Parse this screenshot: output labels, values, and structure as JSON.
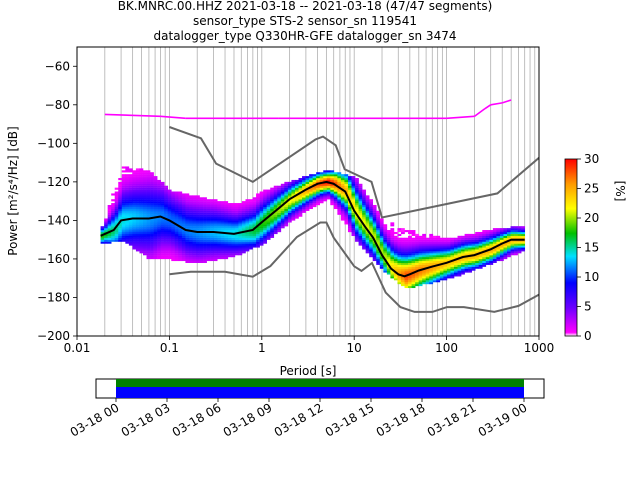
{
  "title_lines": [
    "BK.MNRC.00.HHZ   2021-03-18 -- 2021-03-18  (47/47 segments)",
    "sensor_type STS-2 sensor_sn 119541",
    "datalogger_type Q330HR-GFE datalogger_sn 3474"
  ],
  "chart_data": [
    {
      "type": "heatmap",
      "subtype": "probabilistic power spectral density",
      "xlabel": "Period [s]",
      "ylabel": "Power [m²/s⁴/Hz] [dB]",
      "xscale": "log",
      "xlim": [
        0.01,
        1000
      ],
      "ylim": [
        -200,
        -50
      ],
      "x_ticks": [
        0.01,
        0.1,
        1,
        10,
        100,
        1000
      ],
      "x_tick_labels": [
        "0.01",
        "0.1",
        "1",
        "10",
        "100",
        "1000"
      ],
      "y_ticks": [
        -200,
        -180,
        -160,
        -140,
        -120,
        -100,
        -80,
        -60
      ],
      "y_tick_labels": [
        "−200",
        "−180",
        "−160",
        "−140",
        "−120",
        "−100",
        "−80",
        "−60"
      ],
      "grid": "x major and minor",
      "colorbar": {
        "label": "[%]",
        "range": [
          0,
          30
        ],
        "ticks": [
          0,
          5,
          10,
          15,
          20,
          25,
          30
        ],
        "tick_labels": [
          "0",
          "5",
          "10",
          "15",
          "20",
          "25",
          "30"
        ],
        "colormap": "pqlx"
      },
      "mode_curve": {
        "color": "#000000",
        "x": [
          0.018,
          0.025,
          0.03,
          0.04,
          0.06,
          0.08,
          0.1,
          0.15,
          0.2,
          0.3,
          0.5,
          0.8,
          1,
          1.5,
          2,
          3,
          4,
          5,
          6,
          8,
          10,
          13,
          16,
          20,
          25,
          30,
          35,
          40,
          50,
          70,
          100,
          150,
          200,
          300,
          400,
          500,
          700
        ],
        "y": [
          -148,
          -145,
          -140,
          -139,
          -139,
          -138,
          -140,
          -145,
          -146,
          -146,
          -147,
          -145,
          -141,
          -134,
          -129,
          -124,
          -121,
          -120,
          -121,
          -125,
          -135,
          -143,
          -149,
          -158,
          -165,
          -168,
          -169,
          -168,
          -166,
          -164,
          -162,
          -159,
          -158,
          -155,
          -152,
          -150,
          -150
        ]
      },
      "noise_models": [
        {
          "name": "NHNM",
          "color": "#666666",
          "x": [
            0.1,
            0.22,
            0.32,
            0.8,
            3.8,
            4.6,
            6.3,
            7.9,
            15.4,
            20,
            354.8,
            1000
          ],
          "y": [
            -91.5,
            -97.4,
            -110.5,
            -120,
            -98,
            -96.5,
            -101,
            -113.5,
            -120,
            -138.5,
            -126,
            -107.5
          ]
        },
        {
          "name": "NLNM",
          "color": "#666666",
          "x": [
            0.1,
            0.17,
            0.4,
            0.8,
            1.24,
            2.4,
            4.3,
            5,
            6,
            10,
            12,
            15.6,
            21.9,
            31.6,
            45,
            70,
            101,
            154,
            328,
            600,
            1000
          ],
          "y": [
            -168,
            -166.7,
            -166.7,
            -169.2,
            -163.7,
            -148.6,
            -141.1,
            -141.1,
            -149,
            -163.8,
            -166.2,
            -162.1,
            -177.5,
            -185,
            -187.5,
            -187.5,
            -185,
            -185,
            -187.5,
            -184.4,
            -178.5
          ]
        }
      ],
      "density": [
        {
          "x": 0.018,
          "y": [
            -152,
            -143
          ],
          "peak_y": -147,
          "peak_pct": 18
        },
        {
          "x": 0.03,
          "y": [
            -150,
            -112
          ],
          "peak_y": -140,
          "peak_pct": 14
        },
        {
          "x": 0.06,
          "y": [
            -160,
            -115
          ],
          "peak_y": -139,
          "peak_pct": 12
        },
        {
          "x": 0.1,
          "y": [
            -160,
            -125
          ],
          "peak_y": -140,
          "peak_pct": 11
        },
        {
          "x": 0.2,
          "y": [
            -162,
            -128
          ],
          "peak_y": -146,
          "peak_pct": 12
        },
        {
          "x": 0.5,
          "y": [
            -158,
            -132
          ],
          "peak_y": -146,
          "peak_pct": 14
        },
        {
          "x": 1,
          "y": [
            -152,
            -125
          ],
          "peak_y": -141,
          "peak_pct": 18
        },
        {
          "x": 2,
          "y": [
            -140,
            -120
          ],
          "peak_y": -129,
          "peak_pct": 22
        },
        {
          "x": 5,
          "y": [
            -128,
            -114
          ],
          "peak_y": -120,
          "peak_pct": 30
        },
        {
          "x": 10,
          "y": [
            -150,
            -118
          ],
          "peak_y": -135,
          "peak_pct": 22
        },
        {
          "x": 20,
          "y": [
            -166,
            -140
          ],
          "peak_y": -158,
          "peak_pct": 20
        },
        {
          "x": 35,
          "y": [
            -175,
            -145
          ],
          "peak_y": -169,
          "peak_pct": 28
        },
        {
          "x": 100,
          "y": [
            -170,
            -150
          ],
          "peak_y": -162,
          "peak_pct": 24
        },
        {
          "x": 300,
          "y": [
            -162,
            -145
          ],
          "peak_y": -155,
          "peak_pct": 25
        },
        {
          "x": 700,
          "y": [
            -155,
            -143
          ],
          "peak_y": -150,
          "peak_pct": 25
        }
      ],
      "outlier_band": {
        "x": [
          0.02,
          500
        ],
        "y": [
          -88,
          -77
        ],
        "color": "#ff00ff"
      }
    },
    {
      "type": "timeline",
      "x_tick_labels": [
        "03-18 00",
        "03-18 03",
        "03-18 06",
        "03-18 09",
        "03-18 12",
        "03-18 15",
        "03-18 18",
        "03-18 21",
        "03-19 00"
      ],
      "coverage_fraction": [
        0.0,
        1.0
      ],
      "colors": {
        "data": "#0000ff",
        "used": "#008000"
      }
    }
  ]
}
